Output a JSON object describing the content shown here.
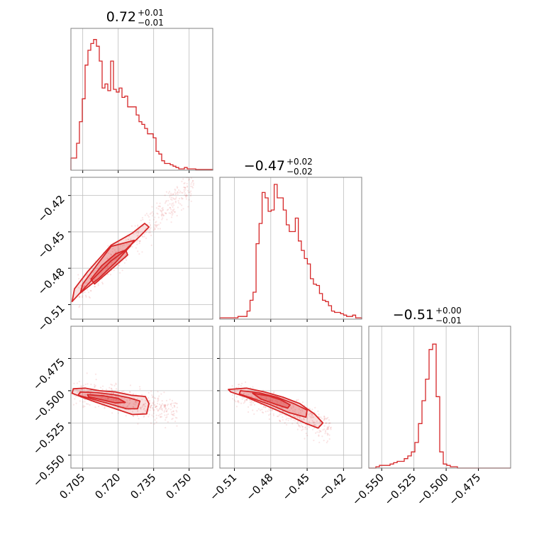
{
  "chart_data": {
    "type": "corner",
    "color": "#d62728",
    "grid": true,
    "parameters": [
      {
        "range": [
          0.7,
          0.76
        ],
        "ticks": [
          0.705,
          0.72,
          0.735,
          0.75
        ],
        "tick_labels": [
          "0.705",
          "0.720",
          "0.735",
          "0.750"
        ],
        "title": {
          "value": "0.72",
          "plus": "+0.01",
          "minus": "−0.01"
        },
        "hist_values": [
          0.09,
          0.09,
          0.2,
          0.36,
          0.53,
          0.78,
          0.89,
          0.94,
          0.97,
          0.92,
          0.81,
          0.61,
          0.64,
          0.59,
          0.81,
          0.6,
          0.58,
          0.61,
          0.54,
          0.55,
          0.47,
          0.47,
          0.47,
          0.41,
          0.36,
          0.34,
          0.31,
          0.27,
          0.27,
          0.24,
          0.14,
          0.12,
          0.07,
          0.05,
          0.05,
          0.04,
          0.03,
          0.02,
          0.01,
          0.01,
          0.02,
          0.01,
          0.01,
          0.01,
          0.005,
          0.005,
          0.005,
          0.005,
          0.005,
          0.005
        ]
      },
      {
        "range": [
          -0.522,
          -0.405
        ],
        "ticks": [
          -0.51,
          -0.48,
          -0.45,
          -0.42
        ],
        "tick_labels": [
          "−0.51",
          "−0.48",
          "−0.45",
          "−0.42"
        ],
        "title": {
          "value": "−0.47",
          "plus": "+0.02",
          "minus": "−0.02"
        },
        "hist_values": [
          0.01,
          0.01,
          0.01,
          0.01,
          0.01,
          0.01,
          0.02,
          0.02,
          0.02,
          0.06,
          0.14,
          0.2,
          0.56,
          0.71,
          0.94,
          0.9,
          0.8,
          0.81,
          1.0,
          0.9,
          0.9,
          0.81,
          0.7,
          0.65,
          0.65,
          0.75,
          0.58,
          0.51,
          0.45,
          0.41,
          0.3,
          0.26,
          0.25,
          0.19,
          0.14,
          0.13,
          0.1,
          0.06,
          0.05,
          0.05,
          0.04,
          0.03,
          0.02,
          0.02,
          0.03,
          0.01,
          0.01
        ]
      },
      {
        "range": [
          -0.56,
          -0.45
        ],
        "ticks": [
          -0.55,
          -0.525,
          -0.5,
          -0.475
        ],
        "tick_labels": [
          "−0.550",
          "−0.525",
          "−0.500",
          "−0.475"
        ],
        "title": {
          "value": "−0.51",
          "plus": "+0.00",
          "minus": "−0.01"
        },
        "hist_values": [
          0.0,
          0.0,
          0.01,
          0.02,
          0.02,
          0.02,
          0.03,
          0.04,
          0.05,
          0.05,
          0.07,
          0.09,
          0.12,
          0.19,
          0.33,
          0.5,
          0.66,
          0.88,
          0.92,
          0.53,
          0.12,
          0.03,
          0.02,
          0.01,
          0.01,
          0.0,
          0.0,
          0.0,
          0.0,
          0.0,
          0.0,
          0.0,
          0.0,
          0.0,
          0.0,
          0.0,
          0.0,
          0.0,
          0.0,
          0.0
        ]
      }
    ],
    "contour_panels": [
      {
        "x_param": 0,
        "y_param": 1,
        "contours": [
          [
            [
              0.7005,
              -0.5075
            ],
            [
              0.709,
              -0.4895
            ],
            [
              0.717,
              -0.474
            ],
            [
              0.7225,
              -0.466
            ],
            [
              0.7295,
              -0.453
            ],
            [
              0.733,
              -0.446
            ],
            [
              0.7312,
              -0.443
            ],
            [
              0.726,
              -0.451
            ],
            [
              0.717,
              -0.461
            ],
            [
              0.707,
              -0.483
            ],
            [
              0.7015,
              -0.497
            ]
          ],
          [
            [
              0.704,
              -0.5005
            ],
            [
              0.712,
              -0.488
            ],
            [
              0.719,
              -0.475
            ],
            [
              0.725,
              -0.462
            ],
            [
              0.7268,
              -0.457
            ],
            [
              0.721,
              -0.46
            ],
            [
              0.717,
              -0.462
            ],
            [
              0.7115,
              -0.476
            ],
            [
              0.705,
              -0.493
            ]
          ],
          [
            [
              0.71,
              -0.493
            ],
            [
              0.717,
              -0.481
            ],
            [
              0.724,
              -0.469
            ],
            [
              0.7232,
              -0.465
            ],
            [
              0.719,
              -0.468
            ],
            [
              0.713,
              -0.478
            ],
            [
              0.7085,
              -0.489
            ]
          ]
        ],
        "scatter_region": {
          "x": [
            0.703,
            0.752
          ],
          "y_center_slope": [
            0.7005,
            -0.5075,
            0.733,
            -0.445
          ],
          "spread": 0.014
        }
      },
      {
        "x_param": 0,
        "y_param": 2,
        "contours": [
          [
            [
              0.701,
              -0.4985
            ],
            [
              0.706,
              -0.498
            ],
            [
              0.712,
              -0.5
            ],
            [
              0.719,
              -0.501
            ],
            [
              0.7255,
              -0.5035
            ],
            [
              0.7315,
              -0.5045
            ],
            [
              0.733,
              -0.51
            ],
            [
              0.732,
              -0.518
            ],
            [
              0.726,
              -0.5185
            ],
            [
              0.718,
              -0.5135
            ],
            [
              0.71,
              -0.5085
            ],
            [
              0.704,
              -0.5045
            ],
            [
              0.7005,
              -0.502
            ]
          ],
          [
            [
              0.704,
              -0.501
            ],
            [
              0.711,
              -0.5015
            ],
            [
              0.718,
              -0.503
            ],
            [
              0.7245,
              -0.5055
            ],
            [
              0.7292,
              -0.508
            ],
            [
              0.7282,
              -0.514
            ],
            [
              0.7235,
              -0.514
            ],
            [
              0.716,
              -0.51
            ],
            [
              0.708,
              -0.506
            ],
            [
              0.703,
              -0.5035
            ]
          ],
          [
            [
              0.707,
              -0.503
            ],
            [
              0.714,
              -0.504
            ],
            [
              0.72,
              -0.506
            ],
            [
              0.723,
              -0.509
            ],
            [
              0.719,
              -0.5095
            ],
            [
              0.713,
              -0.507
            ],
            [
              0.7075,
              -0.5048
            ]
          ]
        ],
        "scatter_region": {
          "x": [
            0.701,
            0.745
          ],
          "y_center_slope": [
            0.701,
            -0.501,
            0.733,
            -0.512
          ],
          "spread": 0.012
        }
      },
      {
        "x_param": 1,
        "y_param": 2,
        "contours": [
          [
            [
              -0.515,
              -0.499
            ],
            [
              -0.5,
              -0.498
            ],
            [
              -0.485,
              -0.501
            ],
            [
              -0.47,
              -0.505
            ],
            [
              -0.456,
              -0.51
            ],
            [
              -0.444,
              -0.518
            ],
            [
              -0.437,
              -0.525
            ],
            [
              -0.441,
              -0.529
            ],
            [
              -0.452,
              -0.525
            ],
            [
              -0.468,
              -0.518
            ],
            [
              -0.485,
              -0.511
            ],
            [
              -0.5,
              -0.505
            ],
            [
              -0.513,
              -0.501
            ]
          ],
          [
            [
              -0.505,
              -0.5
            ],
            [
              -0.49,
              -0.5015
            ],
            [
              -0.475,
              -0.505
            ],
            [
              -0.461,
              -0.51
            ],
            [
              -0.45,
              -0.515
            ],
            [
              -0.451,
              -0.5205
            ],
            [
              -0.465,
              -0.517
            ],
            [
              -0.48,
              -0.511
            ],
            [
              -0.495,
              -0.506
            ],
            [
              -0.506,
              -0.5025
            ]
          ],
          [
            [
              -0.495,
              -0.502
            ],
            [
              -0.482,
              -0.504
            ],
            [
              -0.472,
              -0.507
            ],
            [
              -0.464,
              -0.511
            ],
            [
              -0.466,
              -0.5135
            ],
            [
              -0.476,
              -0.5105
            ],
            [
              -0.488,
              -0.5065
            ]
          ]
        ],
        "scatter_region": {
          "x": [
            -0.512,
            -0.43
          ],
          "y_center_slope": [
            -0.515,
            -0.5,
            -0.437,
            -0.527
          ],
          "spread": 0.012
        }
      }
    ]
  }
}
